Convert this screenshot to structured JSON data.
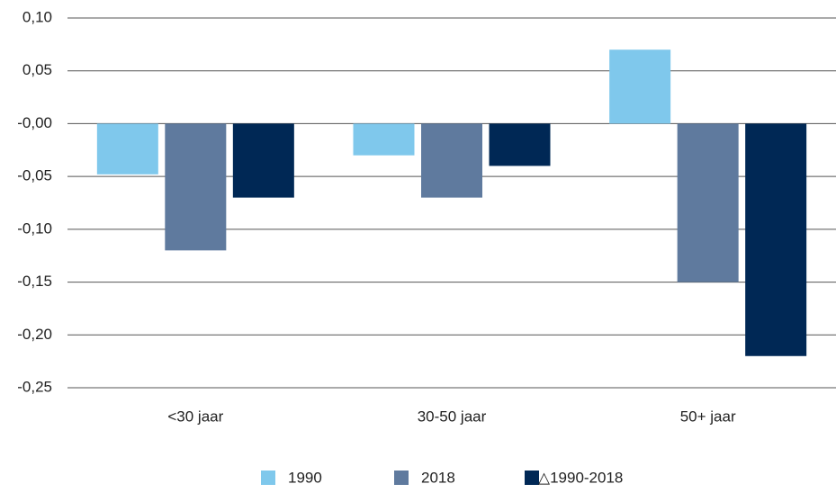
{
  "chart_data": {
    "type": "bar",
    "categories": [
      "<30 jaar",
      "30-50 jaar",
      "50+ jaar"
    ],
    "series": [
      {
        "name": "1990",
        "color": "#7fc8ec",
        "values": [
          -0.048,
          -0.03,
          0.07
        ]
      },
      {
        "name": "2018",
        "color": "#5f7a9e",
        "values": [
          -0.12,
          -0.07,
          -0.15
        ]
      },
      {
        "name": "△1990-2018",
        "color": "#002855",
        "values": [
          -0.07,
          -0.04,
          -0.22
        ]
      }
    ],
    "ylim": [
      -0.25,
      0.1
    ],
    "yticks": [
      {
        "value": 0.1,
        "label": "0,10"
      },
      {
        "value": 0.05,
        "label": "0,05"
      },
      {
        "value": 0,
        "label": "-0,00"
      },
      {
        "value": -0.05,
        "label": "-0,05"
      },
      {
        "value": -0.1,
        "label": "-0,10"
      },
      {
        "value": -0.15,
        "label": "-0,15"
      },
      {
        "value": -0.2,
        "label": "-0,20"
      },
      {
        "value": -0.25,
        "label": "-0,25"
      }
    ],
    "grid": true,
    "legend": "bottom"
  }
}
